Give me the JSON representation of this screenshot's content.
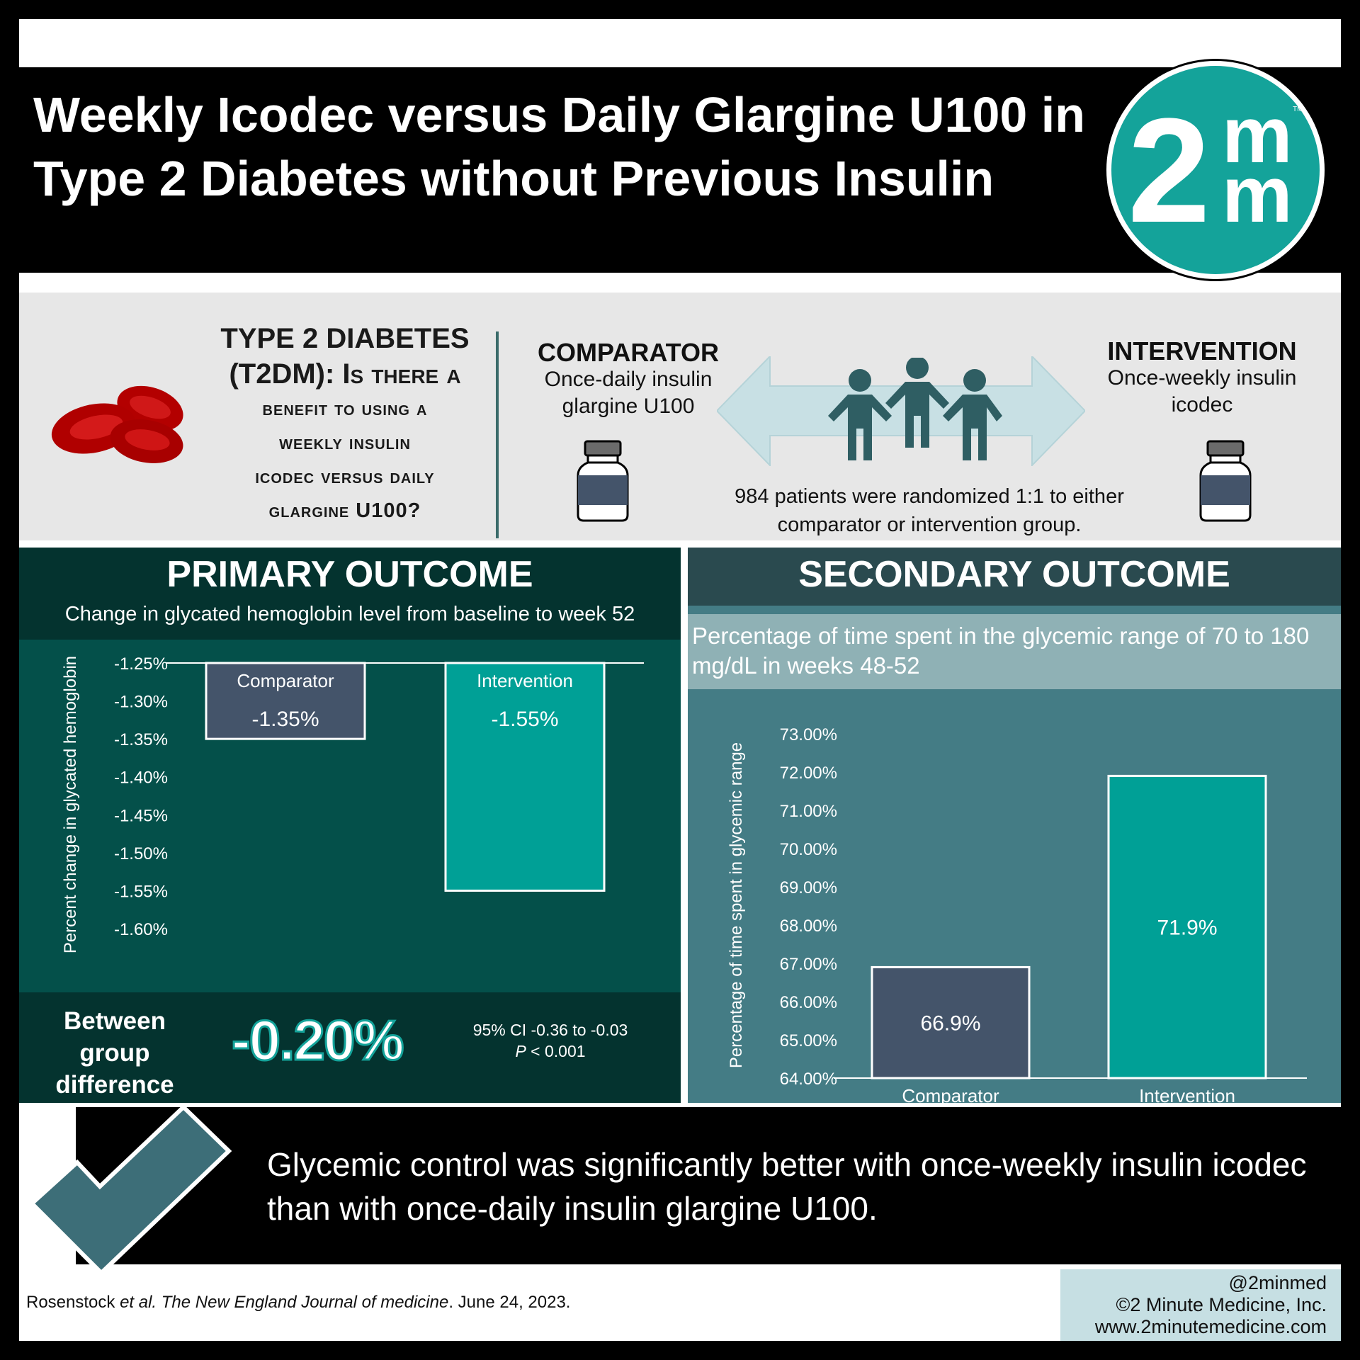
{
  "header": {
    "title": "Weekly Icodec versus Daily Glargine U100 in Type 2 Diabetes without Previous Insulin",
    "logo_text_main": "2",
    "logo_text_top": "m",
    "logo_text_bottom": "m",
    "logo_tm": "TM",
    "logo_color": "#14a39a"
  },
  "intro": {
    "question_line1": "TYPE 2 DIABETES",
    "question_line2": "(T2DM): Is there a",
    "question_line3": "benefit to using a",
    "question_line4": "weekly insulin",
    "question_line5": "icodec versus daily",
    "question_line6": "glargine U100?",
    "comparator_title": "COMPARATOR",
    "comparator_desc": "Once-daily insulin glargine U100",
    "intervention_title": "INTERVENTION",
    "intervention_desc": "Once-weekly insulin icodec",
    "randomization_text": "984 patients were randomized 1:1 to either comparator or intervention group."
  },
  "primary": {
    "title": "PRIMARY OUTCOME",
    "subtitle": "Change in glycated hemoglobin level from baseline to week 52",
    "between_label": "Between group difference",
    "between_value": "-0.20%",
    "ci_text": "95% CI -0.36 to -0.03",
    "p_label": "P",
    "p_rest": " < 0.001"
  },
  "secondary": {
    "title": "SECONDARY OUTCOME",
    "subtitle": "Percentage of time spent in the glycemic range of 70 to 180 mg/dL in weeks 48-52"
  },
  "chart_data": [
    {
      "type": "bar",
      "ylabel": "Percent change in glycated hemoglobin",
      "yticks": [
        "-1.25%",
        "-1.30%",
        "-1.35%",
        "-1.40%",
        "-1.45%",
        "-1.50%",
        "-1.55%",
        "-1.60%"
      ],
      "ylim": [
        -1.6,
        -1.25
      ],
      "categories": [
        "Comparator",
        "Intervention"
      ],
      "values": [
        -1.35,
        -1.55
      ],
      "data_labels": [
        "-1.35%",
        "-1.55%"
      ],
      "colors": [
        "#44546a",
        "#00a096"
      ]
    },
    {
      "type": "bar",
      "ylabel": "Percentage of time spent in glycemic range",
      "yticks": [
        "73.00%",
        "72.00%",
        "71.00%",
        "70.00%",
        "69.00%",
        "68.00%",
        "67.00%",
        "66.00%",
        "65.00%",
        "64.00%"
      ],
      "ylim": [
        64,
        73
      ],
      "categories": [
        "Comparator",
        "Intervention"
      ],
      "values": [
        66.9,
        71.9
      ],
      "data_labels": [
        "66.9%",
        "71.9%"
      ],
      "colors": [
        "#44546a",
        "#00a096"
      ]
    }
  ],
  "conclusion": {
    "text": "Glycemic control was significantly better with once-weekly insulin icodec than with once-daily insulin glargine U100."
  },
  "footer": {
    "citation_author": "Rosenstock ",
    "citation_etal": "et al.",
    "citation_journal": " The New England Journal of medicine",
    "citation_date": ". June 24, 2023.",
    "handle": "@2minmed",
    "copyright": "©2 Minute Medicine, Inc.",
    "website": "www.2minutemedicine.com"
  }
}
